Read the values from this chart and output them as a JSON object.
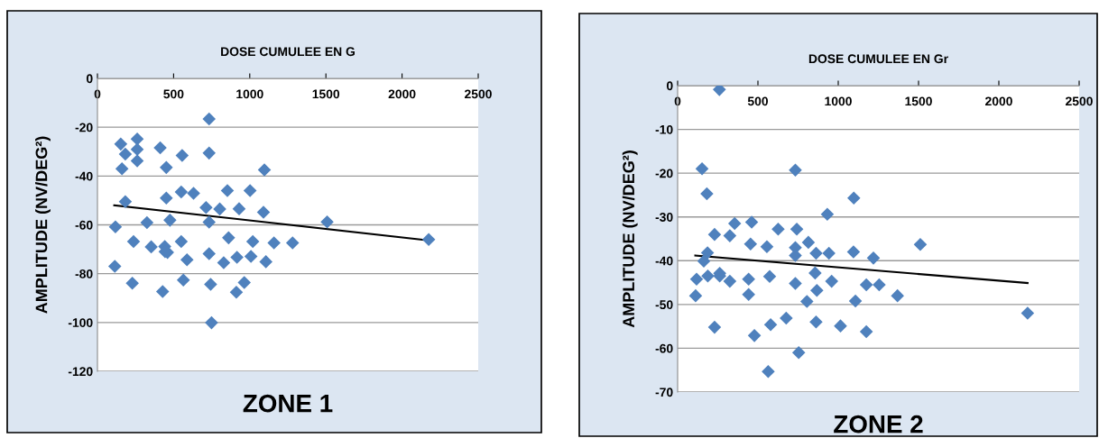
{
  "chart_data": [
    {
      "type": "scatter",
      "title": "ZONE 1",
      "xlabel": "DOSE CUMULEE EN G",
      "ylabel": "AMPLITUDE (NV/DEG²)",
      "xlim": [
        0,
        2500
      ],
      "ylim": [
        -120,
        0
      ],
      "xticks": [
        0,
        500,
        1000,
        1500,
        2000,
        2500
      ],
      "yticks": [
        -120,
        -100,
        -80,
        -60,
        -40,
        -20,
        0
      ],
      "grid": "y",
      "series": [
        {
          "marker": "diamond",
          "color": "#4f81bd",
          "x": [
            733,
            153,
            261,
            261,
            261,
            183,
            161,
            412,
            452,
            556,
            733,
            1096,
            550,
            631,
            452,
            183,
            853,
            1002,
            713,
            803,
            930,
            1090,
            118,
            325,
            476,
            733,
            1508,
            2175,
            237,
            550,
            353,
            442,
            460,
            444,
            861,
            1020,
            1159,
            1281,
            733,
            588,
            916,
            1008,
            829,
            1106,
            114,
            229,
            564,
            743,
            964,
            428,
            912,
            749
          ],
          "values": [
            -16.6,
            -26.9,
            -24.8,
            -29.1,
            -33.8,
            -31,
            -37,
            -28.4,
            -36.5,
            -31.6,
            -30.6,
            -37.5,
            -46.5,
            -47.1,
            -49,
            -50.5,
            -46,
            -46,
            -52.9,
            -53.5,
            -53.4,
            -54.8,
            -60.8,
            -59.1,
            -58.1,
            -58.9,
            -58.8,
            -66,
            -66.8,
            -66.8,
            -69,
            -68.9,
            -71.3,
            -71,
            -65.3,
            -66.8,
            -67.4,
            -67.4,
            -71.8,
            -74.3,
            -73.3,
            -72.9,
            -75.5,
            -75.1,
            -77,
            -83.9,
            -82.6,
            -84.4,
            -83.6,
            -87.3,
            -87.6,
            -100.1
          ]
        },
        {
          "type": "line",
          "color": "#000000",
          "x": [
            110,
            2181
          ],
          "values": [
            -52,
            -66.4
          ]
        }
      ]
    },
    {
      "type": "scatter",
      "title": "ZONE 2",
      "xlabel": "DOSE CUMULEE EN Gr",
      "ylabel": "AMPLITUDE (NV/DEG²)",
      "xlim": [
        0,
        2500
      ],
      "ylim": [
        -70,
        0
      ],
      "xticks": [
        0,
        500,
        1000,
        1500,
        2000,
        2500
      ],
      "yticks": [
        -70,
        -60,
        -50,
        -40,
        -30,
        -20,
        -10,
        0
      ],
      "grid": "y",
      "series": [
        {
          "marker": "diamond",
          "color": "#4f81bd",
          "x": [
            260,
            152,
            182,
            733,
            1097,
            932,
            230,
            325,
            355,
            461,
            454,
            556,
            626,
            742,
            733,
            733,
            814,
            862,
            942,
            1095,
            1219,
            1511,
            186,
            163,
            118,
            112,
            188,
            262,
            262,
            325,
            442,
            442,
            573,
            733,
            856,
            959,
            867,
            805,
            1175,
            1255,
            1369,
            1107,
            230,
            478,
            579,
            676,
            862,
            1014,
            1175,
            754,
            564,
            2179
          ],
          "values": [
            -0.9,
            -19,
            -24.7,
            -19.3,
            -25.7,
            -29.4,
            -34,
            -34.3,
            -31.5,
            -31.2,
            -36.2,
            -36.8,
            -32.8,
            -32.8,
            -37,
            -38.8,
            -35.8,
            -38.3,
            -38.3,
            -38,
            -39.4,
            -36.3,
            -38.2,
            -40.1,
            -44.2,
            -48,
            -43.5,
            -42.9,
            -43.5,
            -44.7,
            -44.2,
            -47.7,
            -43.6,
            -45.2,
            -42.8,
            -44.7,
            -46.8,
            -49.3,
            -45.5,
            -45.5,
            -48,
            -49.2,
            -55.2,
            -57.1,
            -54.6,
            -53.1,
            -54,
            -54.9,
            -56.2,
            -61,
            -65.3,
            -52
          ]
        },
        {
          "type": "line",
          "color": "#000000",
          "x": [
            110,
            2179
          ],
          "values": [
            -38.8,
            -45.1
          ]
        }
      ]
    }
  ]
}
